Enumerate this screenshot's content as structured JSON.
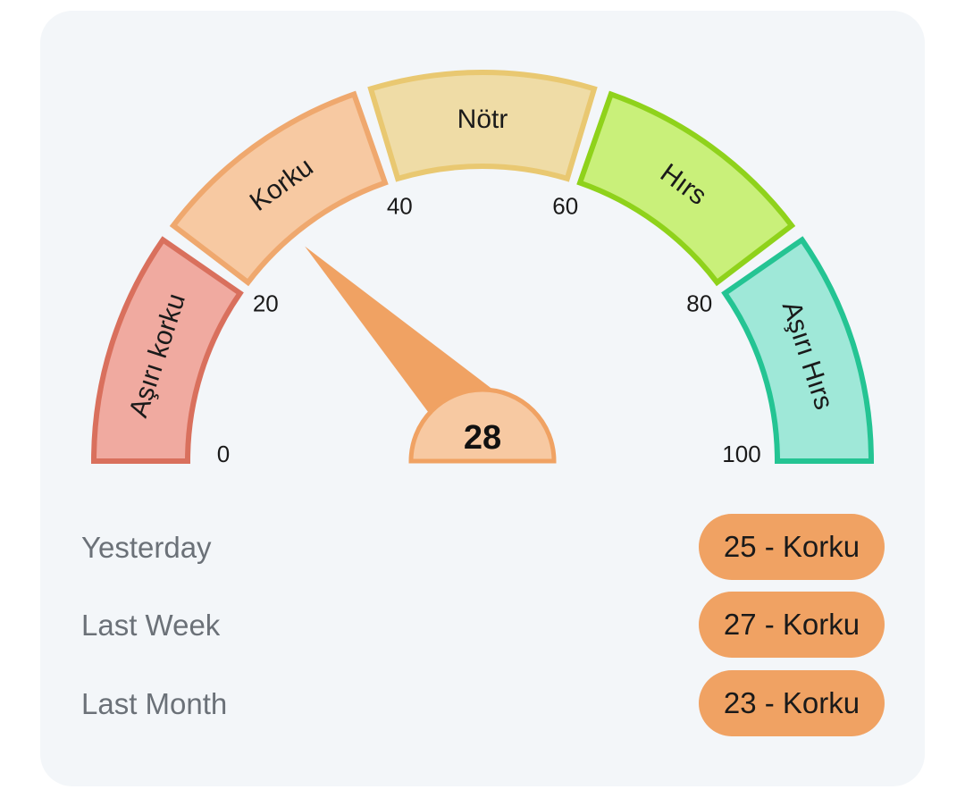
{
  "gauge": {
    "value": 28,
    "min": 0,
    "max": 100,
    "tick_labels": [
      "0",
      "20",
      "40",
      "60",
      "80",
      "100"
    ],
    "segments": [
      {
        "label": "Aşırı korku",
        "from": 0,
        "to": 20,
        "fill": "#f0aaa0",
        "stroke": "#d9705d"
      },
      {
        "label": "Korku",
        "from": 20,
        "to": 40,
        "fill": "#f7c9a2",
        "stroke": "#efa86e"
      },
      {
        "label": "Nötr",
        "from": 40,
        "to": 60,
        "fill": "#efdca6",
        "stroke": "#e9c871"
      },
      {
        "label": "Hırs",
        "from": 60,
        "to": 80,
        "fill": "#c9f07a",
        "stroke": "#8fd21b"
      },
      {
        "label": "Aşırı Hırs",
        "from": 80,
        "to": 100,
        "fill": "#9fe8d8",
        "stroke": "#24c493"
      }
    ],
    "needle_color": "#f0a263",
    "hub_fill": "#f7c9a2"
  },
  "history": [
    {
      "label": "Yesterday",
      "value": "25 - Korku"
    },
    {
      "label": "Last Week",
      "value": "27 - Korku"
    },
    {
      "label": "Last Month",
      "value": "23 - Korku"
    }
  ]
}
